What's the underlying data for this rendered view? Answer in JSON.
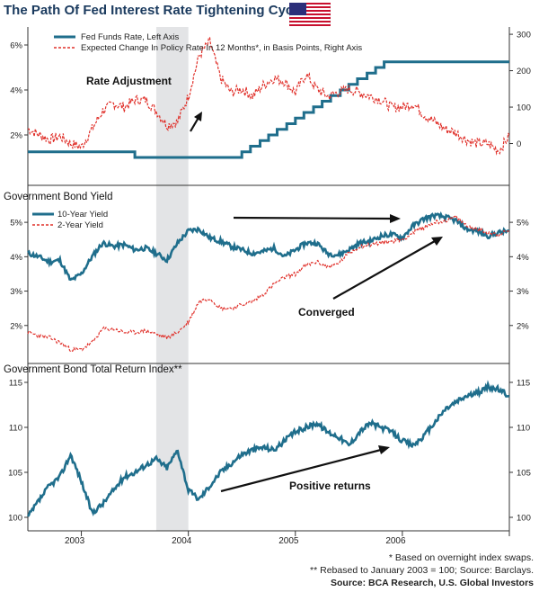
{
  "header": {
    "title": "The Path Of Fed Interest Rate Tightening Cycles"
  },
  "footnotes": {
    "note1": "* Based on overnight index swaps.",
    "note2": "** Rebased to January 2003 = 100; Source: Barclays.",
    "source": "Source: BCA Research, U.S. Global Investors"
  },
  "colors": {
    "teal": "#1f6e8c",
    "red": "#e0302a",
    "shade": "#e3e4e6",
    "flag_red": "#c8102e",
    "flag_blue": "#2c2f7a"
  },
  "chart_data": [
    {
      "type": "line",
      "title": "",
      "series": [
        {
          "name": "Fed Funds Rate, Left Axis",
          "axis": "left",
          "x": [
            2002.5,
            2003.5,
            2003.5,
            2004.5,
            2004.5,
            2004.58,
            2004.58,
            2004.67,
            2004.67,
            2004.75,
            2004.75,
            2004.83,
            2004.83,
            2004.92,
            2004.92,
            2005.0,
            2005.0,
            2005.08,
            2005.08,
            2005.17,
            2005.17,
            2005.25,
            2005.25,
            2005.33,
            2005.33,
            2005.42,
            2005.42,
            2005.5,
            2005.5,
            2005.58,
            2005.58,
            2005.67,
            2005.67,
            2005.75,
            2005.75,
            2005.83,
            2005.83,
            2005.92,
            2005.92,
            2006.0,
            2006.0,
            2006.08,
            2006.08,
            2006.17,
            2006.17,
            2006.25,
            2006.25,
            2006.33,
            2006.33,
            2006.42,
            2006.42,
            2007.0
          ],
          "values": [
            1.25,
            1.25,
            1.0,
            1.0,
            1.25,
            1.25,
            1.5,
            1.5,
            1.75,
            1.75,
            2.0,
            2.0,
            2.25,
            2.25,
            2.5,
            2.5,
            2.75,
            2.75,
            3.0,
            3.0,
            3.25,
            3.25,
            3.5,
            3.5,
            3.75,
            3.75,
            4.0,
            4.0,
            4.25,
            4.25,
            4.5,
            4.5,
            4.75,
            4.75,
            5.0,
            5.0,
            5.25,
            5.25,
            5.25,
            5.25,
            5.25,
            5.25,
            5.25,
            5.25,
            5.25,
            5.25,
            5.25,
            5.25,
            5.25,
            5.25,
            5.25,
            5.25
          ]
        },
        {
          "name": "Expected Change In Policy Rate In 12 Months*, in Basis Points, Right Axis",
          "axis": "right",
          "x": [
            2002.5,
            2002.6,
            2002.7,
            2002.8,
            2002.9,
            2003.0,
            2003.1,
            2003.2,
            2003.3,
            2003.4,
            2003.5,
            2003.6,
            2003.7,
            2003.8,
            2003.9,
            2004.0,
            2004.1,
            2004.2,
            2004.3,
            2004.4,
            2004.5,
            2004.6,
            2004.7,
            2004.8,
            2004.9,
            2005.0,
            2005.1,
            2005.2,
            2005.3,
            2005.4,
            2005.5,
            2005.6,
            2005.7,
            2005.8,
            2005.9,
            2006.0,
            2006.1,
            2006.2,
            2006.3,
            2006.4,
            2006.5,
            2006.6,
            2006.7,
            2006.8,
            2006.9,
            2007.0
          ],
          "values": [
            40,
            25,
            10,
            20,
            0,
            -10,
            40,
            90,
            110,
            100,
            120,
            120,
            90,
            50,
            60,
            130,
            240,
            280,
            180,
            140,
            150,
            130,
            160,
            180,
            170,
            140,
            190,
            150,
            130,
            140,
            150,
            140,
            130,
            120,
            100,
            100,
            110,
            80,
            60,
            40,
            30,
            10,
            0,
            0,
            -20,
            20
          ]
        }
      ],
      "yleft": {
        "ticks": [
          "2%",
          "4%",
          "6%"
        ],
        "ylim": [
          0,
          6.8
        ]
      },
      "yright": {
        "ticks": [
          "0",
          "100",
          "200",
          "300"
        ],
        "ylim": [
          -100,
          320
        ]
      },
      "legend": "top-left",
      "annotations": [
        "Rate Adjustment"
      ]
    },
    {
      "type": "line",
      "title": "Government Bond Yield",
      "series": [
        {
          "name": "10-Year Yield",
          "x": [
            2002.5,
            2002.6,
            2002.7,
            2002.8,
            2002.9,
            2003.0,
            2003.1,
            2003.2,
            2003.3,
            2003.4,
            2003.5,
            2003.6,
            2003.7,
            2003.8,
            2003.9,
            2004.0,
            2004.1,
            2004.2,
            2004.3,
            2004.4,
            2004.5,
            2004.6,
            2004.7,
            2004.8,
            2004.9,
            2005.0,
            2005.1,
            2005.2,
            2005.3,
            2005.4,
            2005.5,
            2005.6,
            2005.7,
            2005.8,
            2005.9,
            2006.0,
            2006.1,
            2006.2,
            2006.3,
            2006.4,
            2006.5,
            2006.6,
            2006.7,
            2006.8,
            2006.9,
            2007.0
          ],
          "values": [
            4.1,
            4.0,
            3.85,
            3.9,
            3.3,
            3.5,
            4.0,
            4.4,
            4.3,
            4.35,
            4.2,
            4.25,
            4.1,
            3.9,
            4.4,
            4.75,
            4.8,
            4.55,
            4.45,
            4.3,
            4.2,
            4.1,
            4.15,
            4.25,
            4.0,
            4.2,
            4.4,
            4.4,
            4.1,
            4.05,
            4.2,
            4.4,
            4.45,
            4.6,
            4.65,
            4.55,
            4.9,
            5.1,
            5.2,
            5.15,
            5.05,
            4.8,
            4.75,
            4.6,
            4.7,
            4.75
          ]
        },
        {
          "name": "2-Year Yield",
          "x": [
            2002.5,
            2002.6,
            2002.7,
            2002.8,
            2002.9,
            2003.0,
            2003.1,
            2003.2,
            2003.3,
            2003.4,
            2003.5,
            2003.6,
            2003.7,
            2003.8,
            2003.9,
            2004.0,
            2004.1,
            2004.2,
            2004.3,
            2004.4,
            2004.5,
            2004.6,
            2004.7,
            2004.8,
            2004.9,
            2005.0,
            2005.1,
            2005.2,
            2005.3,
            2005.4,
            2005.5,
            2005.6,
            2005.7,
            2005.8,
            2005.9,
            2006.0,
            2006.1,
            2006.2,
            2006.3,
            2006.4,
            2006.5,
            2006.6,
            2006.7,
            2006.8,
            2006.9,
            2007.0
          ],
          "values": [
            1.8,
            1.7,
            1.65,
            1.5,
            1.3,
            1.3,
            1.5,
            1.9,
            1.9,
            1.8,
            1.8,
            1.85,
            1.75,
            1.65,
            1.8,
            2.1,
            2.7,
            2.8,
            2.5,
            2.5,
            2.6,
            2.7,
            2.9,
            3.2,
            3.4,
            3.5,
            3.75,
            3.85,
            3.7,
            3.8,
            4.1,
            4.3,
            4.35,
            4.4,
            4.45,
            4.5,
            4.7,
            4.85,
            5.0,
            5.05,
            5.15,
            4.9,
            4.8,
            4.7,
            4.65,
            4.75
          ]
        }
      ],
      "yleft": {
        "ticks": [
          "2%",
          "3%",
          "4%",
          "5%"
        ],
        "ylim": [
          1.0,
          5.5
        ]
      },
      "yright": {
        "ticks": [
          "2%",
          "3%",
          "4%",
          "5%"
        ],
        "ylim": [
          1.0,
          5.5
        ]
      },
      "legend": "top-left",
      "annotations": [
        "Converged"
      ]
    },
    {
      "type": "line",
      "title": "Government Bond Total Return Index**",
      "series": [
        {
          "name": "",
          "x": [
            2002.5,
            2002.6,
            2002.7,
            2002.8,
            2002.9,
            2003.0,
            2003.1,
            2003.2,
            2003.3,
            2003.4,
            2003.5,
            2003.6,
            2003.7,
            2003.8,
            2003.9,
            2004.0,
            2004.1,
            2004.2,
            2004.3,
            2004.4,
            2004.5,
            2004.6,
            2004.7,
            2004.8,
            2004.9,
            2005.0,
            2005.1,
            2005.2,
            2005.3,
            2005.4,
            2005.5,
            2005.6,
            2005.7,
            2005.8,
            2005.9,
            2006.0,
            2006.1,
            2006.2,
            2006.3,
            2006.4,
            2006.5,
            2006.6,
            2006.7,
            2006.8,
            2006.9,
            2007.0
          ],
          "values": [
            100.0,
            101.8,
            103.5,
            104.5,
            107.0,
            104.0,
            100.5,
            101.5,
            103.0,
            104.5,
            105.0,
            105.8,
            106.5,
            105.5,
            107.5,
            103.0,
            102.0,
            103.5,
            105.0,
            106.0,
            107.0,
            107.5,
            107.8,
            107.5,
            108.5,
            109.5,
            110.0,
            110.5,
            109.5,
            109.0,
            108.0,
            109.5,
            110.5,
            110.0,
            109.5,
            108.5,
            108.0,
            109.0,
            110.5,
            112.0,
            112.8,
            113.5,
            113.8,
            114.5,
            114.2,
            113.5
          ]
        }
      ],
      "yleft": {
        "ticks": [
          "100",
          "105",
          "110",
          "115"
        ],
        "ylim": [
          98.5,
          115.5
        ]
      },
      "yright": {
        "ticks": [
          "100",
          "105",
          "110",
          "115"
        ],
        "ylim": [
          98.5,
          115.5
        ]
      },
      "annotations": [
        "Positive returns"
      ]
    }
  ],
  "x_axis": {
    "type": "date",
    "range": [
      2002.5,
      2007.0
    ],
    "ticks": [
      {
        "label": "2003",
        "x": 2003.0
      },
      {
        "label": "2004",
        "x": 2004.0
      },
      {
        "label": "2005",
        "x": 2005.0
      },
      {
        "label": "2006",
        "x": 2006.0
      }
    ],
    "shaded_period": [
      2003.7,
      2004.0
    ]
  }
}
